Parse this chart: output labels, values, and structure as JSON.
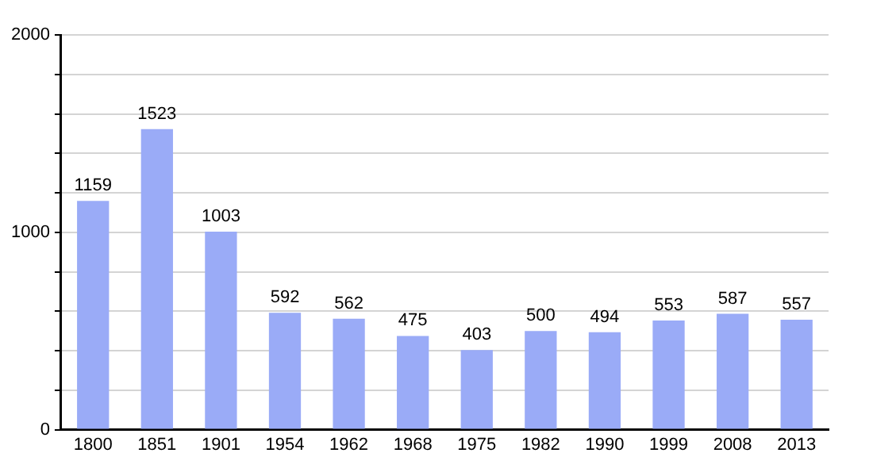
{
  "chart_data": {
    "type": "bar",
    "categories": [
      "1800",
      "1851",
      "1901",
      "1954",
      "1962",
      "1968",
      "1975",
      "1982",
      "1990",
      "1999",
      "2008",
      "2013"
    ],
    "values": [
      1159,
      1523,
      1003,
      592,
      562,
      475,
      403,
      500,
      494,
      553,
      587,
      557
    ],
    "color": "#9aabf7",
    "ylim": [
      0,
      2000
    ],
    "yticks": [
      0,
      {
        "value": 200,
        "label": null
      },
      {
        "value": 400,
        "label": null
      },
      {
        "value": 600,
        "label": null
      },
      {
        "value": 800,
        "label": null
      },
      1000,
      {
        "value": 1200,
        "label": null
      },
      {
        "value": 1400,
        "label": null
      },
      {
        "value": 1600,
        "label": null
      },
      {
        "value": 1800,
        "label": null
      },
      2000
    ],
    "grid": true,
    "data_labels": true
  }
}
